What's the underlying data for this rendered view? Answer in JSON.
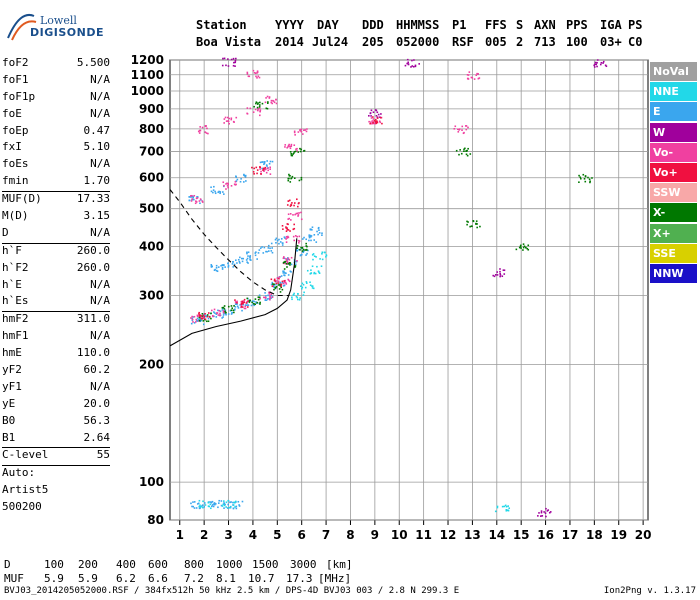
{
  "logo": {
    "line1": "Lowell",
    "line2": "DIGISONDE"
  },
  "header": {
    "labels": [
      "Station",
      "YYYY",
      "DAY",
      "DDD",
      "HHMMSS",
      "P1",
      "FFS",
      "S",
      "AXN",
      "PPS",
      "IGA",
      "PS"
    ],
    "values": [
      "Boa Vista",
      "2014",
      "Jul24",
      "205",
      "052000",
      "RSF",
      "005",
      "2",
      "713",
      "100",
      "03+",
      "C0"
    ]
  },
  "params": [
    {
      "name": "foF2",
      "value": "5.500"
    },
    {
      "name": "foF1",
      "value": "N/A"
    },
    {
      "name": "foF1p",
      "value": "N/A"
    },
    {
      "name": "foE",
      "value": "N/A"
    },
    {
      "name": "foEp",
      "value": "0.47"
    },
    {
      "name": "fxI",
      "value": "5.10"
    },
    {
      "name": "foEs",
      "value": "N/A"
    },
    {
      "name": "fmin",
      "value": "1.70",
      "sep": true
    },
    {
      "name": "MUF(D)",
      "value": "17.33"
    },
    {
      "name": "M(D)",
      "value": "3.15"
    },
    {
      "name": "D",
      "value": "N/A",
      "sep": true
    },
    {
      "name": "h`F",
      "value": "260.0"
    },
    {
      "name": "h`F2",
      "value": "260.0"
    },
    {
      "name": "h`E",
      "value": "N/A"
    },
    {
      "name": "h`Es",
      "value": "N/A",
      "sep": true
    },
    {
      "name": "hmF2",
      "value": "311.0"
    },
    {
      "name": "hmF1",
      "value": "N/A"
    },
    {
      "name": "hmE",
      "value": "110.0"
    },
    {
      "name": "yF2",
      "value": "60.2"
    },
    {
      "name": "yF1",
      "value": "N/A"
    },
    {
      "name": "yE",
      "value": "20.0"
    },
    {
      "name": "B0",
      "value": "56.3"
    },
    {
      "name": "B1",
      "value": "2.64",
      "sep": true
    },
    {
      "name": "C-level",
      "value": "55",
      "sep": true
    },
    {
      "name": "Auto:",
      "value": ""
    },
    {
      "name": "Artist5",
      "value": ""
    },
    {
      "name": "500200",
      "value": ""
    }
  ],
  "legend": [
    {
      "label": "NoVal",
      "color": "#a0a0a0"
    },
    {
      "label": "NNE",
      "color": "#22d8e8"
    },
    {
      "label": "E",
      "color": "#3aa6ee"
    },
    {
      "label": "W",
      "color": "#a0009c"
    },
    {
      "label": "Vo-",
      "color": "#f040a0"
    },
    {
      "label": "Vo+",
      "color": "#f01040"
    },
    {
      "label": "SSW",
      "color": "#f8a8a8"
    },
    {
      "label": "X-",
      "color": "#007800"
    },
    {
      "label": "X+",
      "color": "#50b050"
    },
    {
      "label": "SSE",
      "color": "#d8d000"
    },
    {
      "label": "NNW",
      "color": "#1a10c8"
    }
  ],
  "chart_data": {
    "type": "scatter",
    "title": "",
    "xlabel": "",
    "ylabel": "",
    "xlim": [
      0.6,
      20.2
    ],
    "ylim": [
      80,
      1200
    ],
    "x_ticks": [
      1,
      2,
      3,
      4,
      5,
      6,
      7,
      8,
      9,
      10,
      11,
      12,
      13,
      14,
      15,
      16,
      17,
      18,
      19,
      20
    ],
    "y_ticks": [
      80,
      100,
      200,
      300,
      400,
      500,
      600,
      700,
      800,
      900,
      1000,
      1100,
      1200
    ],
    "y_scale": "log",
    "grid": true,
    "series": [
      {
        "color": "#3aa6ee",
        "points": [
          [
            1.7,
            260
          ],
          [
            2.0,
            265
          ],
          [
            2.5,
            270
          ],
          [
            3.0,
            275
          ],
          [
            3.5,
            280
          ],
          [
            4.0,
            290
          ],
          [
            4.5,
            300
          ],
          [
            5.0,
            320
          ],
          [
            5.3,
            340
          ],
          [
            5.5,
            370
          ],
          [
            6.0,
            390
          ],
          [
            6.3,
            420
          ],
          [
            6.6,
            440
          ],
          [
            2.5,
            355
          ],
          [
            3.0,
            360
          ],
          [
            3.5,
            370
          ],
          [
            4.0,
            380
          ],
          [
            4.5,
            395
          ],
          [
            5.0,
            415
          ],
          [
            1.6,
            530
          ],
          [
            2.5,
            560
          ],
          [
            3.5,
            600
          ],
          [
            4.5,
            650
          ],
          [
            1.7,
            88
          ],
          [
            2.2,
            88
          ],
          [
            2.8,
            88
          ],
          [
            3.3,
            88
          ]
        ]
      },
      {
        "color": "#22d8e8",
        "points": [
          [
            5.8,
            300
          ],
          [
            6.2,
            320
          ],
          [
            6.5,
            350
          ],
          [
            6.7,
            380
          ],
          [
            2.0,
            88
          ],
          [
            3.0,
            88
          ],
          [
            14.2,
            86
          ]
        ]
      },
      {
        "color": "#f040a0",
        "points": [
          [
            1.7,
            262
          ],
          [
            2.5,
            272
          ],
          [
            3.5,
            285
          ],
          [
            4.5,
            300
          ],
          [
            5.2,
            330
          ],
          [
            5.5,
            370
          ],
          [
            5.6,
            420
          ],
          [
            5.7,
            480
          ],
          [
            1.7,
            530
          ],
          [
            3.0,
            575
          ],
          [
            4.5,
            630
          ],
          [
            5.5,
            720
          ],
          [
            5.9,
            790
          ],
          [
            2.0,
            800
          ],
          [
            3.0,
            840
          ],
          [
            4.0,
            890
          ],
          [
            4.7,
            950
          ],
          [
            4.0,
            1110
          ],
          [
            9.0,
            840
          ],
          [
            12.5,
            800
          ],
          [
            13.0,
            1100
          ]
        ]
      },
      {
        "color": "#007800",
        "points": [
          [
            2.0,
            265
          ],
          [
            3.0,
            278
          ],
          [
            4.0,
            292
          ],
          [
            5.0,
            315
          ],
          [
            5.5,
            360
          ],
          [
            6.0,
            400
          ],
          [
            5.7,
            600
          ],
          [
            5.8,
            700
          ],
          [
            4.3,
            920
          ],
          [
            12.6,
            700
          ],
          [
            13.0,
            460
          ],
          [
            15.0,
            400
          ],
          [
            17.6,
            600
          ]
        ]
      },
      {
        "color": "#a0009c",
        "points": [
          [
            3.0,
            1190
          ],
          [
            9.0,
            880
          ],
          [
            10.5,
            1180
          ],
          [
            14.1,
            345
          ],
          [
            15.9,
            84
          ],
          [
            18.2,
            1180
          ]
        ]
      },
      {
        "color": "#f01040",
        "points": [
          [
            2.0,
            268
          ],
          [
            3.5,
            288
          ],
          [
            5.0,
            325
          ],
          [
            5.4,
            450
          ],
          [
            5.6,
            520
          ],
          [
            4.2,
            630
          ],
          [
            9.0,
            845
          ]
        ]
      }
    ],
    "curves": [
      {
        "style": "solid",
        "points": [
          [
            0.6,
            223
          ],
          [
            1.5,
            240
          ],
          [
            2.5,
            250
          ],
          [
            3.5,
            258
          ],
          [
            4.5,
            268
          ],
          [
            5.0,
            278
          ],
          [
            5.4,
            292
          ],
          [
            5.55,
            310
          ],
          [
            5.7,
            360
          ],
          [
            5.8,
            420
          ]
        ]
      },
      {
        "style": "dashed",
        "points": [
          [
            0.6,
            560
          ],
          [
            1.0,
            520
          ],
          [
            1.5,
            470
          ],
          [
            2.0,
            430
          ],
          [
            2.5,
            398
          ],
          [
            3.0,
            370
          ],
          [
            3.5,
            345
          ],
          [
            4.0,
            325
          ],
          [
            4.5,
            310
          ],
          [
            5.0,
            300
          ],
          [
            5.5,
            300
          ]
        ]
      }
    ]
  },
  "bottom": {
    "d_label": "D",
    "d_values": [
      "100",
      "200",
      "400",
      "600",
      "800",
      "1000",
      "1500",
      "3000"
    ],
    "d_unit": "[km]",
    "muf_label": "MUF",
    "muf_values": [
      "5.9",
      "5.9",
      "6.2",
      "6.6",
      "7.2",
      "8.1",
      "10.7",
      "17.3"
    ],
    "muf_unit": "[MHz]",
    "footer_left": "BVJ03_2014205052000.RSF / 384fx512h 50 kHz 2.5 km / DPS-4D BVJ03 003 / 2.8 N 299.3 E",
    "footer_right": "Ion2Png v. 1.3.17"
  }
}
